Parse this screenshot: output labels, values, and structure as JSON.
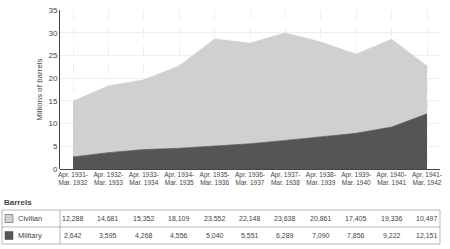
{
  "chart_data": {
    "type": "area",
    "stacked": true,
    "ylabel": "Millions of barrels",
    "annotations": [
      "Barrels"
    ],
    "categories": [
      "Apr. 1931-\nMar. 1932",
      "Apr. 1932-\nMar. 1933",
      "Apr. 1933-\nMar. 1934",
      "Apr. 1934-\nMar. 1935",
      "Apr. 1935-\nMar. 1936",
      "Apr. 1936-\nMar. 1937",
      "Apr. 1937-\nMar. 1938",
      "Apr. 1938-\nMar. 1939",
      "Apr. 1939-\nMar. 1940",
      "Apr. 1940-\nMar. 1941",
      "Apr. 1941-\nMar. 1942"
    ],
    "series": [
      {
        "name": "Military",
        "color": "#555555",
        "values": [
          2.642,
          3.595,
          4.268,
          4.556,
          5.04,
          5.551,
          6.289,
          7.09,
          7.856,
          9.222,
          12.151
        ],
        "value_labels": [
          "2,642",
          "3,595",
          "4,268",
          "4,556",
          "5,040",
          "5,551",
          "6,289",
          "7,090",
          "7,856",
          "9,222",
          "12,151"
        ]
      },
      {
        "name": "Civilian",
        "color": "#d0d0d0",
        "values": [
          12.288,
          14.681,
          15.352,
          18.109,
          23.552,
          22.148,
          23.638,
          20.861,
          17.405,
          19.336,
          10.497
        ],
        "value_labels": [
          "12,288",
          "14,681",
          "15,352",
          "18,109",
          "23,552",
          "22,148",
          "23,638",
          "20,861",
          "17,405",
          "19,336",
          "10,497"
        ]
      }
    ],
    "ylim": [
      0,
      35
    ],
    "yticks": [
      0,
      5,
      10,
      15,
      20,
      25,
      30,
      35
    ],
    "grid": true,
    "data_labels": true
  }
}
